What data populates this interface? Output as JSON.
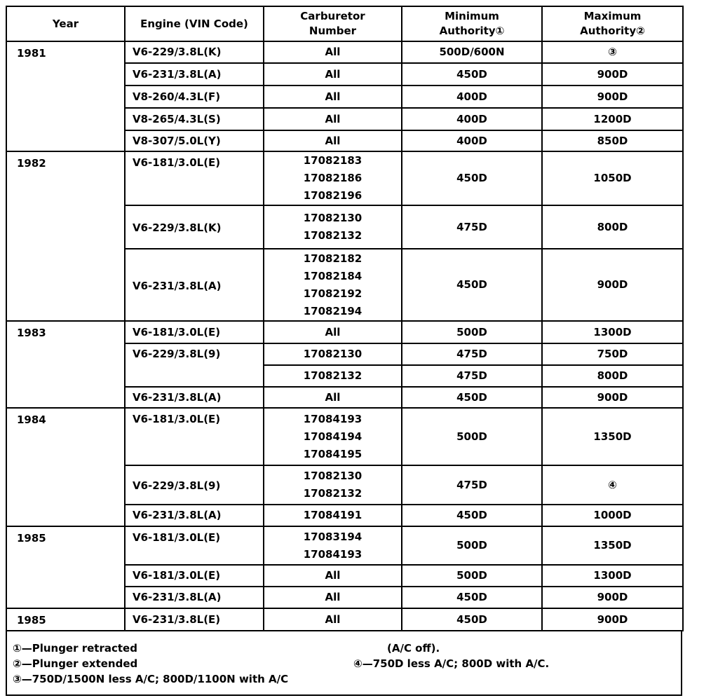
{
  "headers": {
    "year": "Year",
    "engine": "Engine (VIN Code)",
    "carburetor": "Carburetor\nNumber",
    "minimum": "Minimum\nAuthority①",
    "maximum": "Maximum\nAuthority②"
  },
  "groups": [
    {
      "year": "1981",
      "engines": [
        {
          "engine": "V6-229/3.8L(K)",
          "rows": [
            {
              "carb": "All",
              "min": "500D/600N",
              "max": "③"
            }
          ]
        },
        {
          "engine": "V6-231/3.8L(A)",
          "rows": [
            {
              "carb": "All",
              "min": "450D",
              "max": "900D"
            }
          ]
        },
        {
          "engine": "V8-260/4.3L(F)",
          "rows": [
            {
              "carb": "All",
              "min": "400D",
              "max": "900D"
            }
          ]
        },
        {
          "engine": "V8-265/4.3L(S)",
          "rows": [
            {
              "carb": "All",
              "min": "400D",
              "max": "1200D"
            }
          ]
        },
        {
          "engine": "V8-307/5.0L(Y)",
          "rows": [
            {
              "carb": "All",
              "min": "400D",
              "max": "850D"
            }
          ]
        }
      ]
    },
    {
      "year": "1982",
      "engines": [
        {
          "engine": "V6-181/3.0L(E)",
          "rows": [
            {
              "carb": "17082183\n17082186\n17082196",
              "min": "450D",
              "max": "1050D"
            }
          ]
        },
        {
          "engine": "V6-229/3.8L(K)",
          "rows": [
            {
              "carb": "17082130\n17082132",
              "min": "475D",
              "max": "800D"
            }
          ]
        },
        {
          "engine": "V6-231/3.8L(A)",
          "rows": [
            {
              "carb": "17082182\n17082184\n17082192\n17082194",
              "min": "450D",
              "max": "900D"
            }
          ]
        }
      ]
    },
    {
      "year": "1983",
      "engines": [
        {
          "engine": "V6-181/3.0L(E)",
          "rows": [
            {
              "carb": "All",
              "min": "500D",
              "max": "1300D"
            }
          ]
        },
        {
          "engine": "V6-229/3.8L(9)",
          "rows": [
            {
              "carb": "17082130",
              "min": "475D",
              "max": "750D"
            },
            {
              "carb": "17082132",
              "min": "475D",
              "max": "800D"
            }
          ]
        },
        {
          "engine": "V6-231/3.8L(A)",
          "rows": [
            {
              "carb": "All",
              "min": "450D",
              "max": "900D"
            }
          ]
        }
      ]
    },
    {
      "year": "1984",
      "engines": [
        {
          "engine": "V6-181/3.0L(E)",
          "rows": [
            {
              "carb": "17084193\n17084194\n17084195",
              "min": "500D",
              "max": "1350D"
            }
          ]
        },
        {
          "engine": "V6-229/3.8L(9)",
          "rows": [
            {
              "carb": "17082130\n17082132",
              "min": "475D",
              "max": "④"
            }
          ]
        },
        {
          "engine": "V6-231/3.8L(A)",
          "rows": [
            {
              "carb": "17084191",
              "min": "450D",
              "max": "1000D"
            }
          ]
        }
      ]
    },
    {
      "year": "1985",
      "engines": [
        {
          "engine": "V6-181/3.0L(E)",
          "rows": [
            {
              "carb": "17083194\n17084193",
              "min": "500D",
              "max": "1350D"
            }
          ]
        },
        {
          "engine": "V6-181/3.0L(E)",
          "rows": [
            {
              "carb": "All",
              "min": "500D",
              "max": "1300D"
            }
          ]
        },
        {
          "engine": "V6-231/3.8L(A)",
          "rows": [
            {
              "carb": "All",
              "min": "450D",
              "max": "900D"
            }
          ]
        }
      ]
    },
    {
      "year": "1985",
      "engines": [
        {
          "engine": "V6-231/3.8L(E)",
          "rows": [
            {
              "carb": "All",
              "min": "450D",
              "max": "900D"
            }
          ]
        }
      ]
    }
  ],
  "footnotes": {
    "n1": "①—Plunger retracted",
    "n2": "②—Plunger extended",
    "n3": "③—750D/1500N less A/C; 800D/1100N with A/C",
    "n3_cont": "(A/C off).",
    "n4": "④—750D less A/C; 800D with A/C."
  }
}
